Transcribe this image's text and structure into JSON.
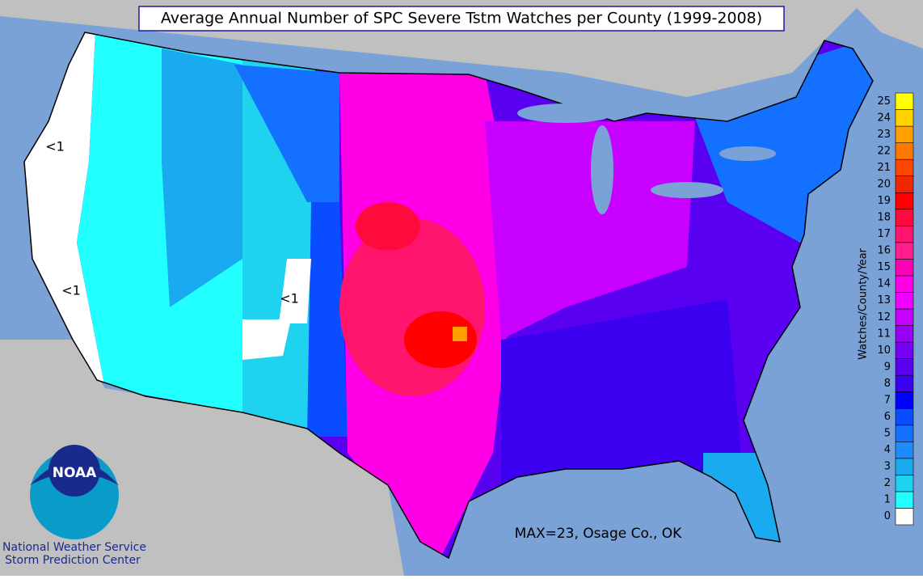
{
  "title": "Average Annual Number of SPC Severe Tstm Watches per County (1999-2008)",
  "annotations": [
    "<1",
    "<1",
    "<1"
  ],
  "max_note": "MAX=23, Osage Co., OK",
  "logo": {
    "text": "NOAA",
    "org": "National Weather Service",
    "center": "Storm Prediction Center"
  },
  "legend": {
    "title": "Watches/County/Year",
    "levels": [
      {
        "value": 0,
        "color": "#ffffff"
      },
      {
        "value": 1,
        "color": "#22ffff"
      },
      {
        "value": 2,
        "color": "#1ed2f0"
      },
      {
        "value": 3,
        "color": "#1aaaf0"
      },
      {
        "value": 4,
        "color": "#1e8cff"
      },
      {
        "value": 5,
        "color": "#1470ff"
      },
      {
        "value": 6,
        "color": "#0a4cff"
      },
      {
        "value": 7,
        "color": "#0000ff"
      },
      {
        "value": 8,
        "color": "#3c00f0"
      },
      {
        "value": 9,
        "color": "#5a00f0"
      },
      {
        "value": 10,
        "color": "#7800f0"
      },
      {
        "value": 11,
        "color": "#9600f5"
      },
      {
        "value": 12,
        "color": "#c800ff"
      },
      {
        "value": 13,
        "color": "#f000ff"
      },
      {
        "value": 14,
        "color": "#ff00e6"
      },
      {
        "value": 15,
        "color": "#ff00b4"
      },
      {
        "value": 16,
        "color": "#ff1e8c"
      },
      {
        "value": 17,
        "color": "#ff146e"
      },
      {
        "value": 18,
        "color": "#ff0a3c"
      },
      {
        "value": 19,
        "color": "#ff0000"
      },
      {
        "value": 20,
        "color": "#f02800"
      },
      {
        "value": 21,
        "color": "#ff4600"
      },
      {
        "value": 22,
        "color": "#ff7800"
      },
      {
        "value": 23,
        "color": "#ffa000"
      },
      {
        "value": 24,
        "color": "#ffd200"
      },
      {
        "value": 25,
        "color": "#ffff00"
      }
    ]
  }
}
